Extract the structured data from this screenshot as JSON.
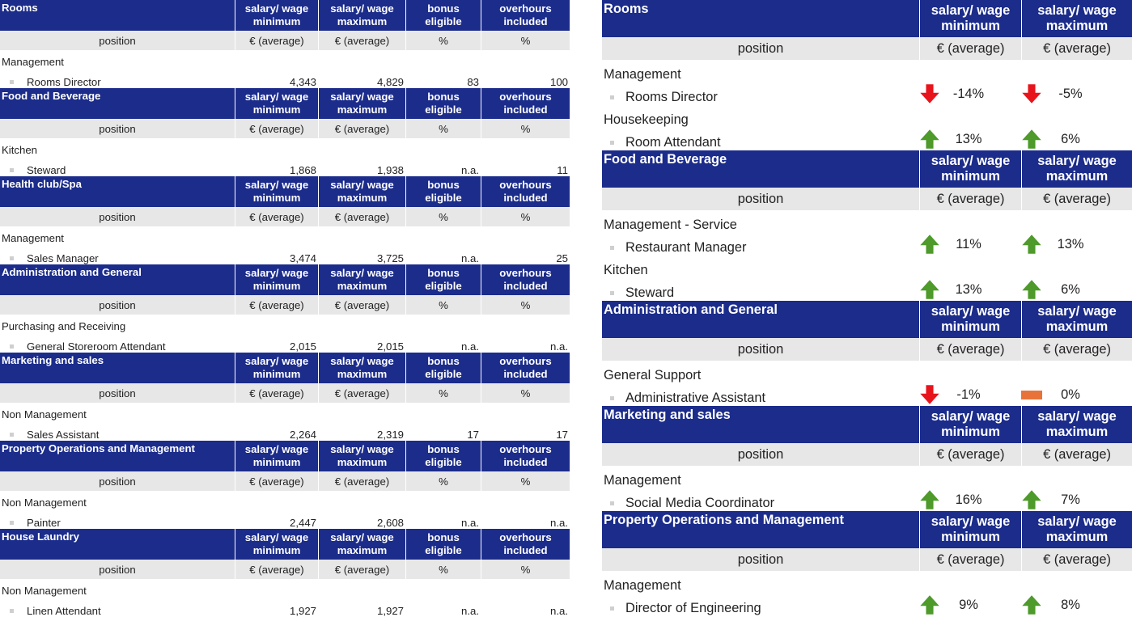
{
  "left": {
    "labels": {
      "min_top": "salary/ wage",
      "min_bot": "minimum",
      "max_top": "salary/ wage",
      "max_bot": "maximum",
      "bonus_top": "bonus",
      "bonus_bot": "eligible",
      "over_top": "overhours",
      "over_bot": "included",
      "position": "position",
      "avg": "€ (average)",
      "pct": "%"
    },
    "sections": [
      {
        "dept": "Rooms",
        "category": "Management",
        "position": "Rooms Director",
        "min": "4,343",
        "max": "4,829",
        "bonus": "83",
        "over": "100"
      },
      {
        "dept": "Food and Beverage",
        "category": "Kitchen",
        "position": "Steward",
        "min": "1,868",
        "max": "1,938",
        "bonus": "n.a.",
        "over": "11"
      },
      {
        "dept": "Health club/Spa",
        "category": "Management",
        "position": "Sales Manager",
        "min": "3,474",
        "max": "3,725",
        "bonus": "n.a.",
        "over": "25"
      },
      {
        "dept": "Administration and General",
        "category": "Purchasing and Receiving",
        "position": "General Storeroom Attendant",
        "min": "2,015",
        "max": "2,015",
        "bonus": "n.a.",
        "over": "n.a."
      },
      {
        "dept": "Marketing and sales",
        "category": "Non Management",
        "position": "Sales Assistant",
        "min": "2,264",
        "max": "2,319",
        "bonus": "17",
        "over": "17"
      },
      {
        "dept": "Property Operations and Management",
        "category": "Non Management",
        "position": "Painter",
        "min": "2,447",
        "max": "2,608",
        "bonus": "n.a.",
        "over": "n.a."
      },
      {
        "dept": "House Laundry",
        "category": "Non Management",
        "position": "Linen Attendant",
        "min": "1,927",
        "max": "1,927",
        "bonus": "n.a.",
        "over": "n.a."
      }
    ]
  },
  "right": {
    "labels": {
      "min_top": "salary/ wage",
      "min_bot": "minimum",
      "max_top": "salary/ wage",
      "max_bot": "maximum",
      "position": "position",
      "avg": "€ (average)"
    },
    "colors": {
      "up": "#4e9a2a",
      "down": "#e8141c",
      "flat": "#e8733a",
      "header": "#1b2c8b"
    },
    "sections": [
      {
        "dept": "Rooms",
        "groups": [
          {
            "category": "Management",
            "position": "Rooms Director",
            "min_trend": "down",
            "min_pct": "-14%",
            "max_trend": "down",
            "max_pct": "-5%"
          },
          {
            "category": "Housekeeping",
            "position": "Room Attendant",
            "min_trend": "up",
            "min_pct": "13%",
            "max_trend": "up",
            "max_pct": "6%"
          }
        ]
      },
      {
        "dept": "Food and Beverage",
        "groups": [
          {
            "category": "Management - Service",
            "position": "Restaurant Manager",
            "min_trend": "up",
            "min_pct": "11%",
            "max_trend": "up",
            "max_pct": "13%"
          },
          {
            "category": "Kitchen",
            "position": "Steward",
            "min_trend": "up",
            "min_pct": "13%",
            "max_trend": "up",
            "max_pct": "6%"
          }
        ]
      },
      {
        "dept": "Administration and General",
        "groups": [
          {
            "category": "General Support",
            "position": "Administrative Assistant",
            "min_trend": "down",
            "min_pct": "-1%",
            "max_trend": "flat",
            "max_pct": "0%"
          }
        ]
      },
      {
        "dept": "Marketing and sales",
        "groups": [
          {
            "category": "Management",
            "position": "Social Media Coordinator",
            "min_trend": "up",
            "min_pct": "16%",
            "max_trend": "up",
            "max_pct": "7%"
          }
        ]
      },
      {
        "dept": "Property Operations and Management",
        "groups": [
          {
            "category": "Management",
            "position": "Director of Engineering",
            "min_trend": "up",
            "min_pct": "9%",
            "max_trend": "up",
            "max_pct": "8%"
          }
        ]
      }
    ]
  }
}
